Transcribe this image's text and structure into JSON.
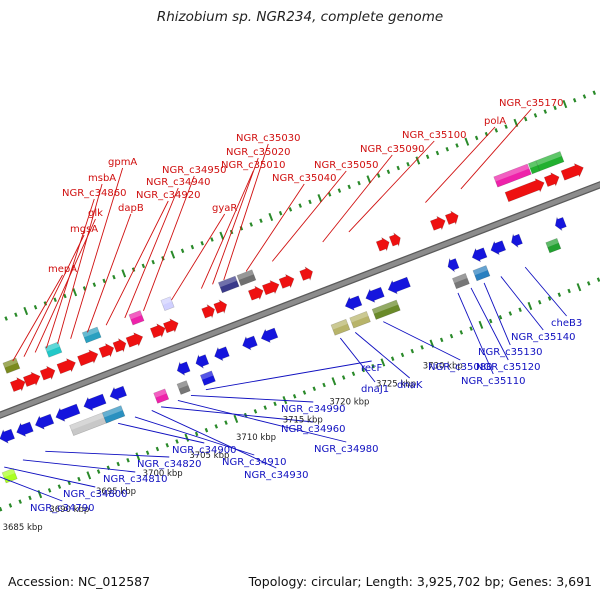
{
  "title": "Rhizobium sp. NGR234, complete genome",
  "accession_text": "Accession: NC_012587",
  "topology_text": "Topology: circular; Length: 3,925,702 bp; Genes: 3,691",
  "colors": {
    "backbone": "#8c8c8c",
    "forward_label": "#d01010",
    "reverse_label": "#1010c0",
    "forward_gene": "#ee1111",
    "reverse_gene": "#1515dd",
    "tick": "#2a8a2a"
  },
  "scale_labels": [
    "3685 kbp",
    "3690 kbp",
    "3695 kbp",
    "3700 kbp",
    "3705 kbp",
    "3710 kbp",
    "3715 kbp",
    "3720 kbp",
    "3725 kbp",
    "3730 kbp"
  ],
  "forward_labels": [
    "mepA",
    "mgsA",
    "glk",
    "NGR_c34860",
    "msbA",
    "gpmA",
    "dapB",
    "NGR_c34920",
    "NGR_c34940",
    "NGR_c34950",
    "gyaR",
    "NGR_c35010",
    "NGR_c35020",
    "NGR_c35030",
    "NGR_c35040",
    "NGR_c35050",
    "NGR_c35090",
    "NGR_c35100",
    "polA",
    "NGR_c35170"
  ],
  "reverse_labels": [
    "NGR_c34790",
    "NGR_c34800",
    "NGR_c34810",
    "NGR_c34820",
    "NGR_c34900",
    "NGR_c34910",
    "NGR_c34930",
    "NGR_c34960",
    "NGR_c34980",
    "NGR_c34990",
    "recF",
    "dnaJ1",
    "dnaK",
    "NGR_c35080",
    "NGR_c35110",
    "NGR_c35120",
    "NGR_c35130",
    "NGR_c35140",
    "cheB3"
  ]
}
